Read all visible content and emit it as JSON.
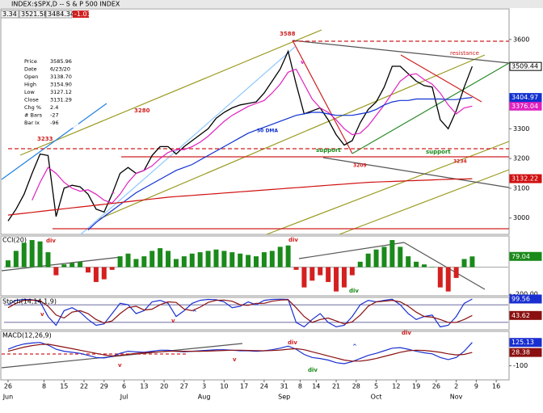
{
  "header": {
    "title": "INDEX:$SPX,D -- S & P 500 INDEX",
    "stats": [
      "3.34",
      "3521.58",
      "3484.34",
      "-1.01"
    ]
  },
  "info": [
    [
      "Price",
      "3585.96"
    ],
    [
      "Date",
      "6/23/20"
    ],
    [
      "Open",
      "3138.70"
    ],
    [
      "High",
      "3154.90"
    ],
    [
      "Low",
      "3127.12"
    ],
    [
      "Close",
      "3131.29"
    ],
    [
      "Chg %",
      "2.4"
    ],
    [
      "# Bars",
      "-27"
    ],
    [
      "Bar Ix",
      "-96"
    ]
  ],
  "chart_data": [
    {
      "type": "line",
      "xlim": [
        -1,
        125
      ],
      "ylim": [
        2945,
        3700
      ],
      "yticks": [
        3000,
        3100,
        3200,
        3300,
        3600
      ],
      "x": [
        0,
        2,
        4,
        6,
        8,
        10,
        12,
        14,
        16,
        18,
        20,
        22,
        24,
        26,
        28,
        30,
        32,
        34,
        36,
        38,
        40,
        42,
        44,
        46,
        48,
        50,
        52,
        54,
        56,
        58,
        60,
        62,
        64,
        66,
        68,
        70,
        72,
        74,
        76,
        78,
        80,
        82,
        84,
        86,
        88,
        90,
        92,
        94,
        96,
        98,
        100,
        102,
        104,
        106,
        108,
        110,
        112,
        114,
        116
      ],
      "series": [
        {
          "color": "#000000",
          "values": [
            2990,
            3030,
            3080,
            3150,
            3215,
            3210,
            3005,
            3100,
            3110,
            3105,
            3080,
            3030,
            3020,
            3080,
            3150,
            3170,
            3150,
            3160,
            3210,
            3240,
            3240,
            3215,
            3240,
            3260,
            3280,
            3300,
            3335,
            3355,
            3370,
            3380,
            3385,
            3390,
            3420,
            3460,
            3500,
            3560,
            3450,
            3350,
            3360,
            3370,
            3330,
            3280,
            3245,
            3260,
            3320,
            3365,
            3390,
            3440,
            3510,
            3510,
            3485,
            3460,
            3445,
            3440,
            3330,
            3300,
            3360,
            3440,
            3509.44
          ]
        },
        {
          "color": "#e020c0",
          "values": [
            null,
            null,
            null,
            3060,
            3120,
            3170,
            3150,
            3120,
            3100,
            3090,
            3095,
            3080,
            3060,
            3050,
            3080,
            3120,
            3150,
            3160,
            3175,
            3200,
            3220,
            3230,
            3230,
            3240,
            3255,
            3275,
            3300,
            3325,
            3345,
            3360,
            3375,
            3385,
            3395,
            3420,
            3450,
            3490,
            3500,
            3450,
            3400,
            3370,
            3355,
            3330,
            3300,
            3280,
            3285,
            3310,
            3345,
            3380,
            3420,
            3460,
            3480,
            3485,
            3465,
            3450,
            3420,
            3380,
            3350,
            3370,
            3376.04
          ]
        },
        {
          "name": "50 DMA",
          "color": "#1030d0",
          "values": [
            null,
            null,
            null,
            null,
            null,
            null,
            null,
            null,
            null,
            null,
            2960,
            2985,
            3005,
            3025,
            3045,
            3065,
            3085,
            3100,
            3115,
            3130,
            3145,
            3160,
            3170,
            3180,
            3195,
            3210,
            3225,
            3240,
            3255,
            3270,
            3285,
            3295,
            3305,
            3315,
            3325,
            3335,
            3345,
            3350,
            3355,
            3355,
            3350,
            3345,
            3345,
            3345,
            3350,
            3355,
            3365,
            3380,
            3390,
            3395,
            3395,
            3400,
            3400,
            3400,
            3400,
            3398,
            3398,
            3402,
            3404.97
          ]
        },
        {
          "color": "#d01010",
          "values": [
            3010,
            3013,
            3016,
            3019,
            3022,
            3025,
            3028,
            3031,
            3034,
            3037,
            3040,
            3043,
            3046,
            3049,
            3052,
            3055,
            3058,
            3061,
            3064,
            3067,
            3070,
            3072,
            3074,
            3076,
            3078,
            3080,
            3082,
            3084,
            3086,
            3088,
            3090,
            3092,
            3094,
            3096,
            3098,
            3100,
            3102,
            3104,
            3106,
            3108,
            3110,
            3112,
            3114,
            3116,
            3118,
            3120,
            3121,
            3122,
            3123,
            3124,
            3125,
            3126,
            3127,
            3128,
            3129,
            3130,
            3131,
            3131,
            3132.22
          ]
        }
      ],
      "annotations": [
        "3588",
        "3233",
        "3280",
        "3209",
        "3234",
        "50 DMA",
        "support",
        "support",
        "resistance",
        "v",
        "^"
      ]
    },
    {
      "type": "bar",
      "title": "CCI(20)",
      "xlim": [
        -1,
        125
      ],
      "ylim": [
        -212,
        230
      ],
      "yticks": [
        {
          "value": -200,
          "label": "-200.00"
        }
      ],
      "x": [
        0,
        2,
        4,
        6,
        8,
        10,
        12,
        14,
        16,
        18,
        20,
        22,
        24,
        26,
        28,
        30,
        32,
        34,
        36,
        38,
        40,
        42,
        44,
        46,
        48,
        50,
        52,
        54,
        56,
        58,
        60,
        62,
        64,
        66,
        68,
        70,
        72,
        74,
        76,
        78,
        80,
        82,
        84,
        86,
        88,
        90,
        92,
        94,
        96,
        98,
        100,
        102,
        104,
        106,
        108,
        110,
        112,
        114,
        116
      ],
      "color": "#1a8a1a",
      "negative_color": "#d42020",
      "values": [
        50,
        120,
        180,
        200,
        190,
        110,
        -60,
        20,
        30,
        40,
        -40,
        -110,
        -90,
        -20,
        80,
        100,
        60,
        80,
        120,
        140,
        120,
        60,
        80,
        100,
        110,
        120,
        130,
        120,
        110,
        100,
        90,
        80,
        110,
        120,
        150,
        160,
        -20,
        -150,
        -100,
        -60,
        -110,
        -180,
        -150,
        -60,
        40,
        100,
        130,
        150,
        200,
        150,
        80,
        40,
        20,
        0,
        -150,
        -180,
        -80,
        60,
        79.04
      ],
      "annotations": [
        "div",
        "div",
        "div"
      ]
    },
    {
      "type": "line",
      "title": "Stoch(14,14,1,9)",
      "xlim": [
        -1,
        125
      ],
      "ylim": [
        -5,
        105
      ],
      "levels": [
        20,
        80
      ],
      "x": [
        0,
        2,
        4,
        6,
        8,
        10,
        12,
        14,
        16,
        18,
        20,
        22,
        24,
        26,
        28,
        30,
        32,
        34,
        36,
        38,
        40,
        42,
        44,
        46,
        48,
        50,
        52,
        54,
        56,
        58,
        60,
        62,
        64,
        66,
        68,
        70,
        72,
        74,
        76,
        78,
        80,
        82,
        84,
        86,
        88,
        90,
        92,
        94,
        96,
        98,
        100,
        102,
        104,
        106,
        108,
        110,
        112,
        114,
        116
      ],
      "series": [
        {
          "color": "#1a2fd0",
          "values": [
            80,
            95,
            98,
            97,
            90,
            40,
            10,
            60,
            70,
            55,
            30,
            10,
            15,
            50,
            85,
            80,
            50,
            60,
            90,
            95,
            85,
            40,
            60,
            85,
            95,
            98,
            97,
            90,
            70,
            75,
            90,
            80,
            95,
            98,
            99,
            98,
            20,
            5,
            30,
            50,
            20,
            5,
            10,
            40,
            80,
            95,
            90,
            95,
            99,
            80,
            50,
            30,
            40,
            45,
            5,
            10,
            40,
            85,
            99.56
          ]
        },
        {
          "color": "#8b1010",
          "values": [
            70,
            85,
            95,
            96,
            94,
            75,
            45,
            35,
            55,
            60,
            50,
            30,
            18,
            25,
            50,
            70,
            75,
            62,
            65,
            80,
            90,
            88,
            65,
            60,
            72,
            88,
            95,
            96,
            92,
            80,
            78,
            85,
            85,
            92,
            96,
            97,
            70,
            40,
            20,
            30,
            35,
            25,
            15,
            22,
            45,
            75,
            90,
            92,
            95,
            90,
            75,
            55,
            40,
            38,
            30,
            20,
            20,
            30,
            43.62
          ]
        }
      ],
      "annotations": [
        "v",
        "v",
        "^"
      ]
    },
    {
      "type": "line",
      "title": "MACD(12,26,9)",
      "xlim": [
        -1,
        125
      ],
      "ylim": [
        -236,
        232
      ],
      "yticks": [
        -100
      ],
      "x": [
        0,
        2,
        4,
        6,
        8,
        10,
        12,
        14,
        16,
        18,
        20,
        22,
        24,
        26,
        28,
        30,
        32,
        34,
        36,
        38,
        40,
        42,
        44,
        46,
        48,
        50,
        52,
        54,
        56,
        58,
        60,
        62,
        64,
        66,
        68,
        70,
        72,
        74,
        76,
        78,
        80,
        82,
        84,
        86,
        88,
        90,
        92,
        94,
        96,
        98,
        100,
        102,
        104,
        106,
        108,
        110,
        112,
        114,
        116
      ],
      "xticks": [
        {
          "value": 0,
          "label": "26",
          "month": "Jun"
        },
        {
          "value": 9,
          "label": "8"
        },
        {
          "value": 14,
          "label": "15"
        },
        {
          "value": 19,
          "label": "22"
        },
        {
          "value": 24,
          "label": "29"
        },
        {
          "value": 29,
          "label": "6",
          "month": "Jul"
        },
        {
          "value": 34,
          "label": "13"
        },
        {
          "value": 39,
          "label": "20"
        },
        {
          "value": 44,
          "label": "27"
        },
        {
          "value": 49,
          "label": "3",
          "month": "Aug"
        },
        {
          "value": 54,
          "label": "10"
        },
        {
          "value": 59,
          "label": "17"
        },
        {
          "value": 64,
          "label": "24"
        },
        {
          "value": 69,
          "label": "31",
          "month": "Sep"
        },
        {
          "value": 73,
          "label": "8"
        },
        {
          "value": 77,
          "label": "14"
        },
        {
          "value": 82,
          "label": "21"
        },
        {
          "value": 87,
          "label": "28"
        },
        {
          "value": 92,
          "label": "5",
          "month": "Oct"
        },
        {
          "value": 97,
          "label": "12"
        },
        {
          "value": 102,
          "label": "19"
        },
        {
          "value": 107,
          "label": "26"
        },
        {
          "value": 112,
          "label": "2",
          "month": "Nov"
        },
        {
          "value": 117,
          "label": "9"
        },
        {
          "value": 122,
          "label": "16"
        }
      ],
      "series": [
        {
          "color": "#1a2fd0",
          "values": [
            60,
            90,
            110,
            120,
            125,
            100,
            60,
            40,
            30,
            20,
            0,
            -20,
            -25,
            -10,
            20,
            40,
            35,
            30,
            40,
            50,
            50,
            40,
            35,
            40,
            45,
            50,
            55,
            55,
            50,
            45,
            45,
            40,
            45,
            55,
            70,
            90,
            60,
            10,
            -20,
            -30,
            -45,
            -70,
            -80,
            -60,
            -30,
            0,
            20,
            45,
            70,
            75,
            60,
            40,
            25,
            15,
            -20,
            -40,
            -20,
            40,
            125.13
          ]
        },
        {
          "color": "#8b1010",
          "values": [
            40,
            60,
            80,
            95,
            105,
            108,
            95,
            80,
            65,
            50,
            35,
            20,
            5,
            -5,
            0,
            10,
            20,
            25,
            30,
            35,
            40,
            42,
            40,
            40,
            40,
            42,
            45,
            48,
            50,
            50,
            48,
            46,
            45,
            47,
            52,
            60,
            65,
            55,
            35,
            15,
            -5,
            -25,
            -45,
            -55,
            -55,
            -45,
            -30,
            -10,
            10,
            30,
            45,
            50,
            48,
            40,
            30,
            15,
            5,
            10,
            28.38
          ]
        }
      ],
      "annotations": [
        "div",
        "div",
        "div",
        "v",
        "v",
        "^"
      ]
    }
  ]
}
